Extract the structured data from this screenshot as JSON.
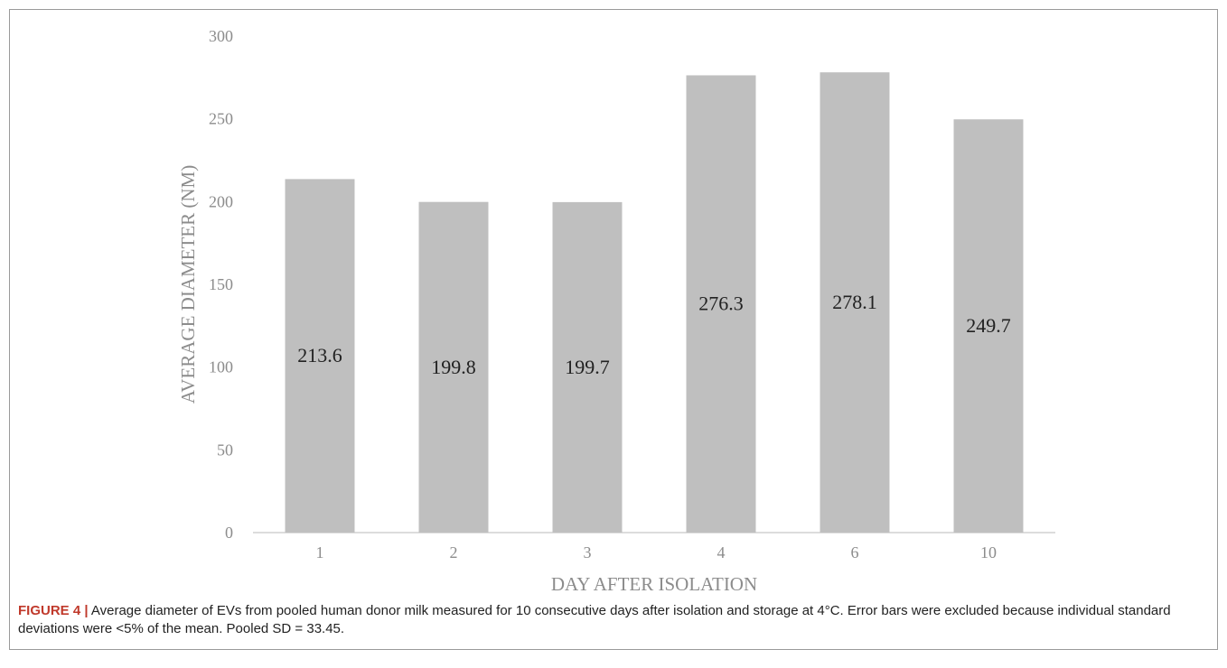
{
  "chart_data": {
    "type": "bar",
    "categories": [
      "1",
      "2",
      "3",
      "4",
      "6",
      "10"
    ],
    "values": [
      213.6,
      199.8,
      199.7,
      276.3,
      278.1,
      249.7
    ],
    "data_labels": [
      "213.6",
      "199.8",
      "199.7",
      "276.3",
      "278.1",
      "249.7"
    ],
    "title": "",
    "xlabel": "DAY AFTER ISOLATION",
    "ylabel": "AVERAGE DIAMETER (NM)",
    "ylim": [
      0,
      300
    ],
    "yticks": [
      0,
      50,
      100,
      150,
      200,
      250,
      300
    ],
    "grid": false,
    "legend": "none",
    "bar_color": "#bfbfbf",
    "axis_text_color": "#8c8c8c",
    "label_color": "#222222"
  },
  "caption": {
    "label": "FIGURE 4 |",
    "text": " Average diameter of EVs from pooled human donor milk measured for 10 consecutive days after isolation and storage at 4°C. Error bars were excluded because individual standard deviations were <5% of the mean. Pooled SD = 33.45."
  }
}
